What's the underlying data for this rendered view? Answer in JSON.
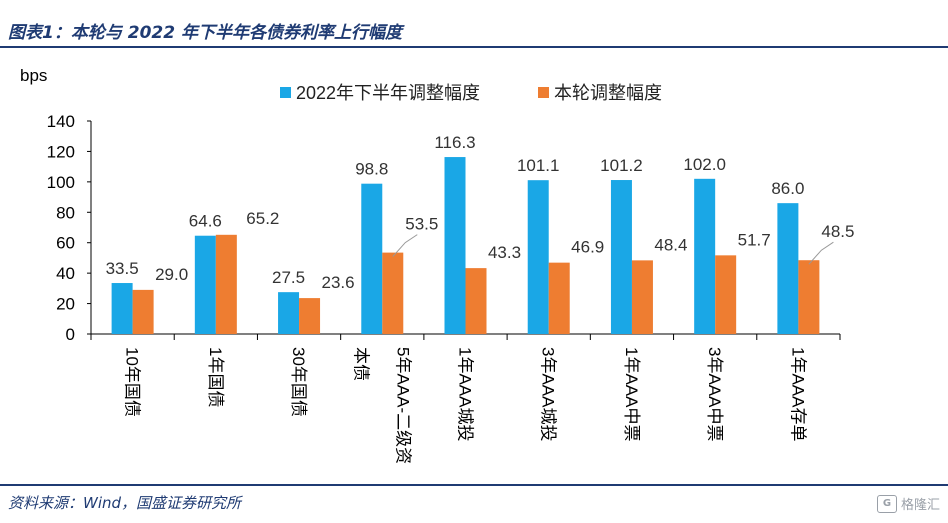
{
  "header": {
    "title": "图表1：本轮与 2022 年下半年各债券利率上行幅度"
  },
  "footer": {
    "source": "资料来源：Wind，国盛证券研究所",
    "watermark": "格隆汇",
    "watermark_icon": "G"
  },
  "colors": {
    "series_blue": "#1aa7e6",
    "series_orange": "#ee7d31",
    "title_blue": "#1f3b73",
    "axis": "#000000"
  },
  "chart_data": {
    "type": "bar",
    "ylabel": "bps",
    "ylim": [
      0,
      140
    ],
    "yticks": [
      0,
      20,
      40,
      60,
      80,
      100,
      120,
      140
    ],
    "categories": [
      "10年国债",
      "1年国债",
      "30年国债",
      "5年AAA-二级资本债",
      "1年AAA城投",
      "3年AAA城投",
      "1年AAA中票",
      "3年AAA中票",
      "1年AAA存单"
    ],
    "category_lines": [
      [
        "10年国债"
      ],
      [
        "1年国债"
      ],
      [
        "30年国债"
      ],
      [
        "5年AAA-二级资",
        "本债"
      ],
      [
        "1年AAA城投"
      ],
      [
        "3年AAA城投"
      ],
      [
        "1年AAA中票"
      ],
      [
        "3年AAA中票"
      ],
      [
        "1年AAA存单"
      ]
    ],
    "series": [
      {
        "name": "2022年下半年调整幅度",
        "values": [
          33.5,
          64.6,
          27.5,
          98.8,
          116.3,
          101.1,
          101.2,
          102.0,
          86.0
        ]
      },
      {
        "name": "本轮调整幅度",
        "values": [
          29.0,
          65.2,
          23.6,
          53.5,
          43.3,
          46.9,
          48.4,
          51.7,
          48.5
        ]
      }
    ],
    "data_labels": [
      [
        "33.5",
        "64.6",
        "27.5",
        "98.8",
        "116.3",
        "101.1",
        "101.2",
        "102.0",
        "86.0"
      ],
      [
        "29.0",
        "65.2",
        "23.6",
        "53.5",
        "43.3",
        "46.9",
        "48.4",
        "51.7",
        "48.5"
      ]
    ],
    "legend_position": "top"
  }
}
